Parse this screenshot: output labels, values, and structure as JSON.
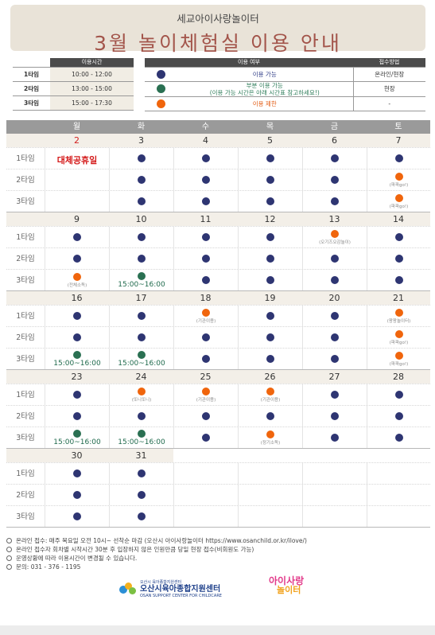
{
  "header": {
    "subtitle": "세교아이사랑놀이터",
    "title": "3월 놀이체험실 이용 안내"
  },
  "schedule": {
    "header": "이용시간",
    "rows": [
      {
        "session": "1타임",
        "time": "10:00 - 12:00"
      },
      {
        "session": "2타임",
        "time": "13:00 - 15:00"
      },
      {
        "session": "3타임",
        "time": "15:00 - 17:30"
      }
    ]
  },
  "legend": {
    "status_header": "이용 여부",
    "method_header": "접수방법",
    "rows": [
      {
        "icon": "blue-dot",
        "text": "이용 가능",
        "method": "온라인/현장"
      },
      {
        "icon": "green-dot",
        "text": "부분 이용 가능",
        "text2": "(이용 가능 시간은 아래 시간표 참고하세요!)",
        "method": "현장"
      },
      {
        "icon": "orange-dot",
        "text": "이용 제한",
        "method": "-"
      }
    ]
  },
  "colors": {
    "blue": "#2e3572",
    "green": "#2a7052",
    "orange": "#f0650c",
    "header_bg": "#e9e3d8",
    "title": "#a3554b"
  },
  "calendar": {
    "days": [
      "월",
      "화",
      "수",
      "목",
      "금",
      "토"
    ],
    "session_labels": [
      "1타임",
      "2타임",
      "3타임"
    ],
    "weeks": [
      {
        "dates": [
          "2",
          "3",
          "4",
          "5",
          "6",
          "7"
        ],
        "holiday_col": 0,
        "sessions": [
          [
            {
              "s": "h",
              "t": "대체공휴일"
            },
            {
              "s": "b"
            },
            {
              "s": "b"
            },
            {
              "s": "b"
            },
            {
              "s": "b"
            },
            {
              "s": "b"
            }
          ],
          [
            {
              "s": "h"
            },
            {
              "s": "b"
            },
            {
              "s": "b"
            },
            {
              "s": "b"
            },
            {
              "s": "b"
            },
            {
              "s": "o",
              "n": "(파파go!)"
            }
          ],
          [
            {
              "s": "h"
            },
            {
              "s": "b"
            },
            {
              "s": "b"
            },
            {
              "s": "b"
            },
            {
              "s": "b"
            },
            {
              "s": "o",
              "n": "(파파go!)"
            }
          ]
        ]
      },
      {
        "dates": [
          "9",
          "10",
          "11",
          "12",
          "13",
          "14"
        ],
        "sessions": [
          [
            {
              "s": "b"
            },
            {
              "s": "b"
            },
            {
              "s": "b"
            },
            {
              "s": "b"
            },
            {
              "s": "o",
              "n": "(오기즈오감놀이)"
            },
            {
              "s": "b"
            }
          ],
          [
            {
              "s": "b"
            },
            {
              "s": "b"
            },
            {
              "s": "b"
            },
            {
              "s": "b"
            },
            {
              "s": "b"
            },
            {
              "s": "b"
            }
          ],
          [
            {
              "s": "o",
              "n": "(전체소독)"
            },
            {
              "s": "g",
              "t": "15:00~16:00"
            },
            {
              "s": "b"
            },
            {
              "s": "b"
            },
            {
              "s": "b"
            },
            {
              "s": "b"
            }
          ]
        ]
      },
      {
        "dates": [
          "16",
          "17",
          "18",
          "19",
          "20",
          "21"
        ],
        "sessions": [
          [
            {
              "s": "b"
            },
            {
              "s": "b"
            },
            {
              "s": "o",
              "n": "(기관이용)"
            },
            {
              "s": "b"
            },
            {
              "s": "b"
            },
            {
              "s": "o",
              "n": "(팡팡놀이터)"
            }
          ],
          [
            {
              "s": "b"
            },
            {
              "s": "b"
            },
            {
              "s": "b"
            },
            {
              "s": "b"
            },
            {
              "s": "b"
            },
            {
              "s": "o",
              "n": "(파파go!)"
            }
          ],
          [
            {
              "s": "g",
              "t": "15:00~16:00"
            },
            {
              "s": "g",
              "t": "15:00~16:00"
            },
            {
              "s": "b"
            },
            {
              "s": "b"
            },
            {
              "s": "b"
            },
            {
              "s": "o",
              "n": "(파파go!)"
            }
          ]
        ]
      },
      {
        "dates": [
          "23",
          "24",
          "25",
          "26",
          "27",
          "28"
        ],
        "sessions": [
          [
            {
              "s": "b"
            },
            {
              "s": "o",
              "n": "(또니또니)"
            },
            {
              "s": "o",
              "n": "(기관이용)"
            },
            {
              "s": "o",
              "n": "(기관이용)"
            },
            {
              "s": "b"
            },
            {
              "s": "b"
            }
          ],
          [
            {
              "s": "b"
            },
            {
              "s": "b"
            },
            {
              "s": "b"
            },
            {
              "s": "b"
            },
            {
              "s": "b"
            },
            {
              "s": "b"
            }
          ],
          [
            {
              "s": "g",
              "t": "15:00~16:00"
            },
            {
              "s": "g",
              "t": "15:00~16:00"
            },
            {
              "s": "b"
            },
            {
              "s": "o",
              "n": "(정기소독)"
            },
            {
              "s": "b"
            },
            {
              "s": "b"
            }
          ]
        ]
      },
      {
        "dates": [
          "30",
          "31",
          "",
          "",
          "",
          ""
        ],
        "sessions": [
          [
            {
              "s": "b"
            },
            {
              "s": "b"
            },
            {
              "s": ""
            },
            {
              "s": ""
            },
            {
              "s": ""
            },
            {
              "s": ""
            }
          ],
          [
            {
              "s": "b"
            },
            {
              "s": "b"
            },
            {
              "s": ""
            },
            {
              "s": ""
            },
            {
              "s": ""
            },
            {
              "s": ""
            }
          ],
          [
            {
              "s": "b"
            },
            {
              "s": "b"
            },
            {
              "s": ""
            },
            {
              "s": ""
            },
            {
              "s": ""
            },
            {
              "s": ""
            }
          ]
        ]
      }
    ]
  },
  "footer": {
    "lines": [
      "온라인 접수: 매주 목요일 오전 10시~ 선착순 마감 (오산시 아이사랑놀이터 https://www.osanchild.or.kr/ilove/)",
      "온라인 접수자 회차별 시작시간 30분 후 입장하지 않은 인원만큼 당일 현장 접수(비회원도 가능)",
      "운영상황에 따라 이용시간이 변경될 수 있습니다.",
      "문의: 031 - 376 - 1195"
    ],
    "logo1_small": "오산시 육아종합지원센터",
    "logo1_text": "오산시육아종합지원센터",
    "logo1_en": "OSAN SUPPORT CENTER FOR CHILDCARE",
    "logo2_a": "아이사랑",
    "logo2_b": "놀이터"
  }
}
